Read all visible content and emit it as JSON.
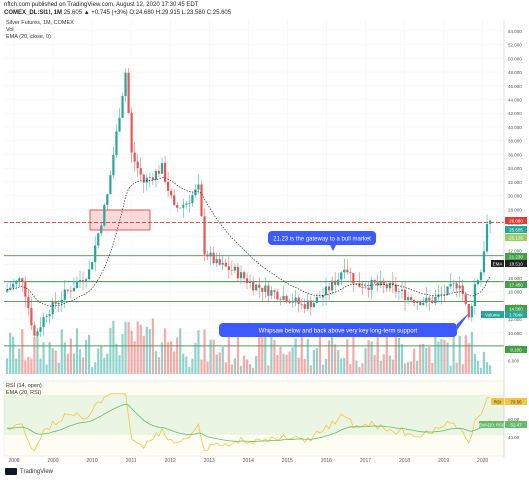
{
  "header": {
    "publisher_line": "nftch.com published on TradingView.com, August 12, 2020 17:30:45 EDT",
    "symbol": "COMEX_DL:SI1!, 1M",
    "price_line": "25.605 ▲ +0.745 (+3%) O:24.680 H:29.915 L:23.580 C:25.605"
  },
  "legend": {
    "title": "Silver Futures, 1M, COMEX",
    "vol": "Vol",
    "ema": "EMA (20, close, 0)",
    "rsi": "RSI (14, open)",
    "rsi_ema": "EMA (20, RSI)"
  },
  "price_axis": [
    "54.000",
    "52.000",
    "50.000",
    "48.000",
    "46.000",
    "44.000",
    "42.000",
    "40.000",
    "38.000",
    "36.000",
    "34.000",
    "32.000",
    "30.000",
    "28.000",
    "26.000",
    "24.000",
    "22.000",
    "20.000",
    "18.000",
    "16.000",
    "14.000",
    "12.000",
    "10.000",
    "8.000",
    "6.000"
  ],
  "rsi_axis": [
    "80.00",
    "60.00",
    "40.00"
  ],
  "years": [
    "2008",
    "2009",
    "2010",
    "2011",
    "2012",
    "2013",
    "2014",
    "2015",
    "2016",
    "2017",
    "2018",
    "2019",
    "2020"
  ],
  "badges": {
    "price_red": "26.080",
    "price_green": "25.605",
    "price_green2": "25.135",
    "level_2123": "21.230",
    "ema": "EMA",
    "ema_value": "18.510",
    "level_1745": "17.450",
    "level_1440": "14.560",
    "volume_value": "Volume",
    "volume_num": "1.764K",
    "level_bottom": "8.100",
    "rsi": "RSI",
    "rsi_value": "70.56",
    "rsi_ema": "EMA(20, RSI)",
    "rsi_ema_value": "52.47"
  },
  "annotations": {
    "gateway": "21.23 is the gateway to a bull market",
    "whipsaw": "Whipsaw below and back above very key long-term support"
  },
  "footer": {
    "brand": "TradingView"
  },
  "colors": {
    "up": "#26a69a",
    "down": "#ef5350",
    "annotation": "#3d5afe",
    "support": "#2e7d32",
    "resistance": "#e53935"
  },
  "chart_data": {
    "type": "candlestick",
    "x": [
      "2008",
      "2009",
      "2010",
      "2011",
      "2012",
      "2013",
      "2014",
      "2015",
      "2016",
      "2017",
      "2018",
      "2019",
      "2020"
    ],
    "series": [
      {
        "name": "EMA (20, close, 0)",
        "values": [
          15.5,
          13.5,
          16,
          24,
          31,
          27,
          21,
          17.5,
          16.5,
          17.5,
          16.5,
          16.5,
          18.5
        ]
      }
    ],
    "close_by_year": [
      11.3,
      16.9,
      30.9,
      28.2,
      30.0,
      19.5,
      15.6,
      13.8,
      16.0,
      17.1,
      15.5,
      17.9,
      25.6
    ],
    "levels": [
      26.08,
      21.23,
      17.45,
      14.56,
      8.1
    ],
    "ylim": [
      4,
      55
    ],
    "rsi_ylim": [
      20,
      100
    ]
  }
}
